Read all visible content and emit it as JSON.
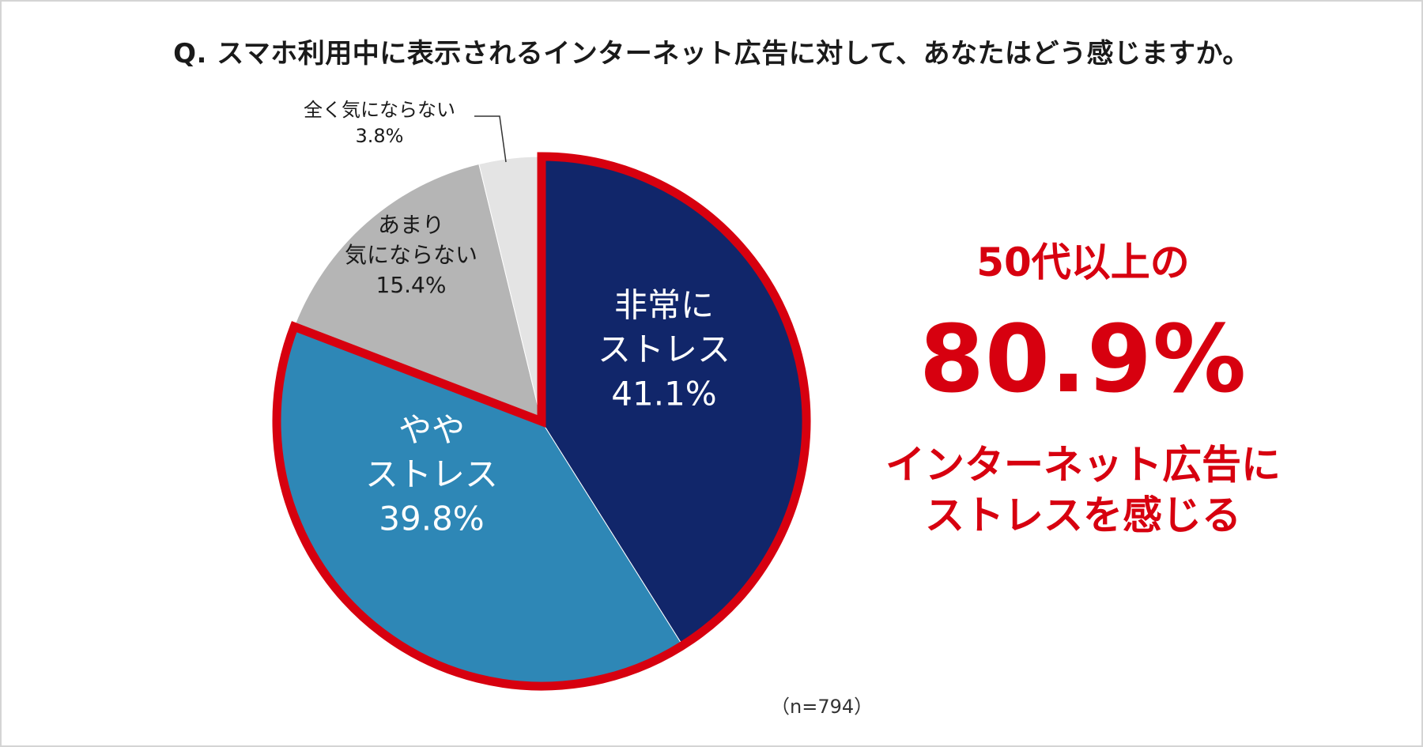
{
  "title": "Q. スマホ利用中に表示されるインターネット広告に対して、あなたはどう感じますか。",
  "note": "（n=794）",
  "callout": {
    "line1": "50代以上の",
    "value": "80.9%",
    "line3": "インターネット広告に",
    "line4": "ストレスを感じる"
  },
  "colors": {
    "highlight_border": "#d7000f",
    "callout_text": "#d7000f"
  },
  "chart_data": {
    "type": "pie",
    "start_angle_deg": 0,
    "direction": "clockwise",
    "slices": [
      {
        "label_lines": [
          "非常に",
          "ストレス"
        ],
        "value": 41.1,
        "value_label": "41.1%",
        "color": "#11266a",
        "text_color": "#ffffff",
        "highlight": true
      },
      {
        "label_lines": [
          "やや",
          "ストレス"
        ],
        "value": 39.8,
        "value_label": "39.8%",
        "color": "#2e87b6",
        "text_color": "#ffffff",
        "highlight": true
      },
      {
        "label_lines": [
          "あまり",
          "気にならない"
        ],
        "value": 15.4,
        "value_label": "15.4%",
        "color": "#b5b5b5",
        "text_color": "#1a1a1a",
        "highlight": false
      },
      {
        "label_lines": [
          "全く気にならない"
        ],
        "value": 3.8,
        "value_label": "3.8%",
        "color": "#e4e4e4",
        "text_color": "#1a1a1a",
        "highlight": false
      }
    ]
  }
}
